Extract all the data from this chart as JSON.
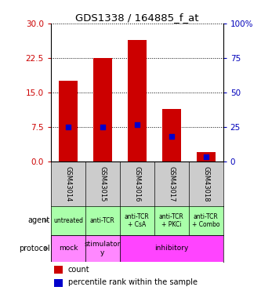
{
  "title": "GDS1338 / 164885_f_at",
  "bar_values": [
    17.5,
    22.5,
    26.5,
    11.5,
    2.0
  ],
  "blue_values": [
    7.5,
    7.5,
    8.0,
    5.5,
    1.0
  ],
  "bar_color": "#cc0000",
  "blue_color": "#0000cc",
  "categories": [
    "GSM43014",
    "GSM43015",
    "GSM43016",
    "GSM43017",
    "GSM43018"
  ],
  "ylim_left": [
    0,
    30
  ],
  "ylim_right": [
    0,
    100
  ],
  "left_ticks": [
    0,
    7.5,
    15,
    22.5,
    30
  ],
  "right_ticks": [
    0,
    25,
    50,
    75,
    100
  ],
  "right_tick_labels": [
    "0",
    "25",
    "50",
    "75",
    "100%"
  ],
  "agent_labels": [
    "untreated",
    "anti-TCR",
    "anti-TCR\n+ CsA",
    "anti-TCR\n+ PKCi",
    "anti-TCR\n+ Combo"
  ],
  "agent_bg": "#aaffaa",
  "protocol_spans": [
    [
      0,
      1,
      "mock",
      "#ff88ff"
    ],
    [
      1,
      2,
      "stimulator\ny",
      "#ff88ff"
    ],
    [
      2,
      5,
      "inhibitory",
      "#ff44ff"
    ]
  ],
  "row_label_agent": "agent",
  "row_label_protocol": "protocol",
  "legend_count_color": "#cc0000",
  "legend_pct_color": "#0000cc",
  "left_axis_color": "#cc0000",
  "right_axis_color": "#0000bb",
  "gsm_bg_color": "#cccccc",
  "title_fontsize": 9.5
}
